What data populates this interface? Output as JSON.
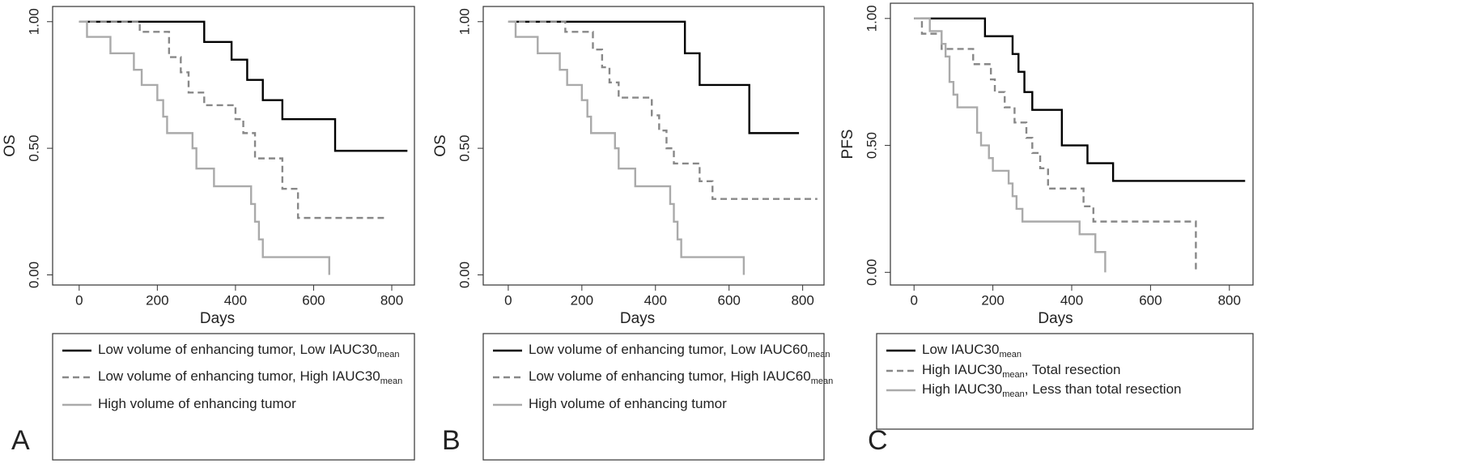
{
  "chart_data": [
    {
      "type": "line",
      "panel_label": "A",
      "xlabel": "Days",
      "ylabel": "OS",
      "xlim": [
        -68,
        858
      ],
      "ylim": [
        -0.04,
        1.06
      ],
      "xticks": [
        0,
        200,
        400,
        600,
        800
      ],
      "yticks": [
        {
          "value": 0,
          "label": "0.00"
        },
        {
          "value": 0.5,
          "label": "0.50"
        },
        {
          "value": 1,
          "label": "1.00"
        }
      ],
      "series": [
        {
          "name": [
            "Low volume of enhancing tumor, Low IAUC30",
            "mean"
          ],
          "color": "#000000",
          "dash": false,
          "x": [
            0,
            320,
            390,
            430,
            470,
            520,
            655,
            840
          ],
          "values": [
            1,
            0.92,
            0.85,
            0.77,
            0.69,
            0.615,
            0.49,
            0.49
          ]
        },
        {
          "name": [
            "Low volume of enhancing tumor, High IAUC30",
            "mean"
          ],
          "color": "#888888",
          "dash": true,
          "x": [
            0,
            155,
            230,
            260,
            280,
            320,
            400,
            420,
            450,
            520,
            560,
            780
          ],
          "values": [
            1,
            0.96,
            0.86,
            0.8,
            0.72,
            0.67,
            0.615,
            0.56,
            0.46,
            0.34,
            0.225,
            0.225
          ]
        },
        {
          "name": [
            "High volume of enhancing tumor"
          ],
          "color": "#aaaaaa",
          "dash": false,
          "x": [
            0,
            20,
            80,
            140,
            160,
            200,
            215,
            225,
            290,
            300,
            345,
            440,
            450,
            460,
            470,
            640
          ],
          "values": [
            1,
            0.94,
            0.875,
            0.81,
            0.75,
            0.69,
            0.625,
            0.56,
            0.5,
            0.42,
            0.35,
            0.28,
            0.21,
            0.14,
            0.07,
            0
          ]
        }
      ]
    },
    {
      "type": "line",
      "panel_label": "B",
      "xlabel": "Days",
      "ylabel": "OS",
      "xlim": [
        -68,
        858
      ],
      "ylim": [
        -0.04,
        1.06
      ],
      "xticks": [
        0,
        200,
        400,
        600,
        800
      ],
      "yticks": [
        {
          "value": 0,
          "label": "0.00"
        },
        {
          "value": 0.5,
          "label": "0.50"
        },
        {
          "value": 1,
          "label": "1.00"
        }
      ],
      "series": [
        {
          "name": [
            "Low volume of enhancing tumor, Low IAUC60",
            "mean"
          ],
          "color": "#000000",
          "dash": false,
          "x": [
            0,
            480,
            520,
            655,
            790
          ],
          "values": [
            1,
            0.875,
            0.75,
            0.56,
            0.56
          ]
        },
        {
          "name": [
            "Low volume of enhancing tumor, High IAUC60",
            "mean"
          ],
          "color": "#888888",
          "dash": true,
          "x": [
            0,
            155,
            230,
            255,
            275,
            300,
            390,
            410,
            430,
            450,
            520,
            555,
            840
          ],
          "values": [
            1,
            0.96,
            0.89,
            0.82,
            0.76,
            0.7,
            0.63,
            0.57,
            0.5,
            0.44,
            0.37,
            0.3,
            0.3
          ]
        },
        {
          "name": [
            "High volume of enhancing tumor"
          ],
          "color": "#aaaaaa",
          "dash": false,
          "x": [
            0,
            20,
            80,
            140,
            160,
            200,
            215,
            225,
            290,
            300,
            345,
            440,
            450,
            460,
            470,
            640
          ],
          "values": [
            1,
            0.94,
            0.875,
            0.81,
            0.75,
            0.69,
            0.625,
            0.56,
            0.5,
            0.42,
            0.35,
            0.28,
            0.21,
            0.14,
            0.07,
            0
          ]
        }
      ]
    },
    {
      "type": "line",
      "panel_label": "C",
      "xlabel": "Days",
      "ylabel": "PFS",
      "xlim": [
        -60,
        860
      ],
      "ylim": [
        -0.05,
        1.06
      ],
      "xticks": [
        0,
        200,
        400,
        600,
        800
      ],
      "yticks": [
        {
          "value": 0,
          "label": "0.00"
        },
        {
          "value": 0.5,
          "label": "0.50"
        },
        {
          "value": 1,
          "label": "1.00"
        }
      ],
      "series": [
        {
          "name": [
            "Low IAUC30",
            "mean"
          ],
          "color": "#000000",
          "dash": false,
          "x": [
            0,
            180,
            250,
            265,
            280,
            300,
            375,
            440,
            505,
            840
          ],
          "values": [
            1,
            0.93,
            0.86,
            0.79,
            0.71,
            0.64,
            0.5,
            0.43,
            0.36,
            0.36
          ]
        },
        {
          "name": [
            "High IAUC30",
            "mean",
            ", Total resection"
          ],
          "color": "#888888",
          "dash": true,
          "x": [
            0,
            20,
            70,
            150,
            195,
            205,
            230,
            255,
            285,
            300,
            320,
            340,
            430,
            455,
            715
          ],
          "values": [
            1,
            0.94,
            0.88,
            0.82,
            0.76,
            0.71,
            0.65,
            0.59,
            0.53,
            0.47,
            0.41,
            0.33,
            0.26,
            0.2,
            0
          ]
        },
        {
          "name": [
            "High IAUC30",
            "mean",
            ", Less than total resection"
          ],
          "color": "#aaaaaa",
          "dash": false,
          "x": [
            0,
            40,
            70,
            80,
            90,
            100,
            110,
            160,
            170,
            190,
            200,
            240,
            250,
            260,
            275,
            420,
            460,
            485
          ],
          "values": [
            1,
            0.95,
            0.9,
            0.85,
            0.75,
            0.7,
            0.65,
            0.55,
            0.5,
            0.45,
            0.4,
            0.35,
            0.3,
            0.25,
            0.2,
            0.15,
            0.08,
            0
          ]
        }
      ]
    }
  ]
}
